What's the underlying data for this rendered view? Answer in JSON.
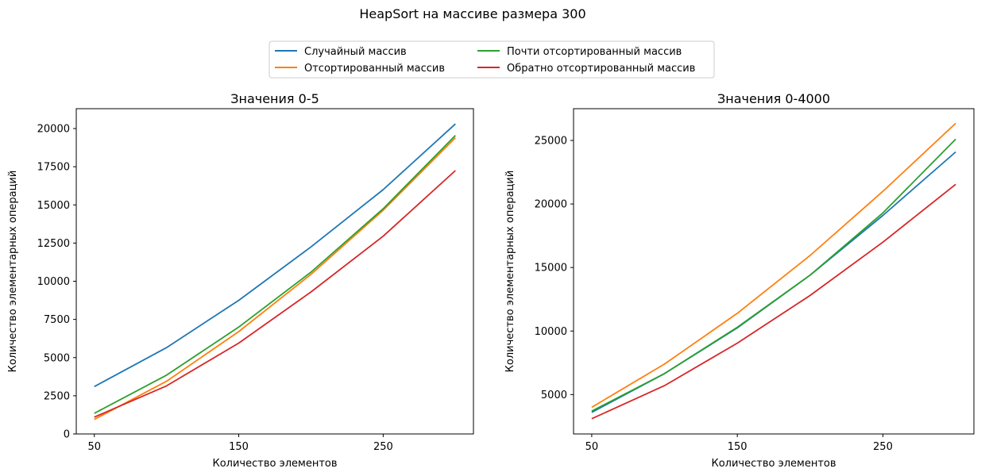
{
  "suptitle": "HeapSort на массиве размера 300",
  "legend": {
    "placement": "top-center",
    "entries": [
      {
        "label": "Случайный массив",
        "color": "#1f77b4"
      },
      {
        "label": "Отсортированный массив",
        "color": "#ff7f0e"
      },
      {
        "label": "Почти отсортированный массив",
        "color": "#2ca02c"
      },
      {
        "label": "Обратно отсортированный массив",
        "color": "#d62728"
      }
    ]
  },
  "chart_data": [
    {
      "type": "line",
      "title": "Значения 0-5",
      "xlabel": "Количество элементов",
      "ylabel": "Количество элементарных операций",
      "x": [
        50,
        100,
        150,
        200,
        250,
        300
      ],
      "xticks": [
        50,
        150,
        250
      ],
      "xlim": [
        37.5,
        312.5
      ],
      "yticks": [
        0,
        2500,
        5000,
        7500,
        10000,
        12500,
        15000,
        17500,
        20000
      ],
      "ylim": [
        0,
        21300
      ],
      "grid": false,
      "series": [
        {
          "name": "Случайный массив",
          "color": "#1f77b4",
          "values": [
            3100,
            5650,
            8750,
            12250,
            16000,
            20300
          ]
        },
        {
          "name": "Отсортированный массив",
          "color": "#ff7f0e",
          "values": [
            950,
            3450,
            6700,
            10450,
            14650,
            19400
          ]
        },
        {
          "name": "Почти отсортированный массив",
          "color": "#2ca02c",
          "values": [
            1350,
            3850,
            7000,
            10600,
            14750,
            19550
          ]
        },
        {
          "name": "Обратно отсортированный массив",
          "color": "#d62728",
          "values": [
            1100,
            3150,
            5950,
            9300,
            12950,
            17250
          ]
        }
      ]
    },
    {
      "type": "line",
      "title": "Значения 0-4000",
      "xlabel": "Количество элементов",
      "ylabel": "Количество элементарных операций",
      "x": [
        50,
        100,
        150,
        200,
        250,
        300
      ],
      "xticks": [
        50,
        150,
        250
      ],
      "xlim": [
        37.5,
        312.5
      ],
      "yticks": [
        5000,
        10000,
        15000,
        20000,
        25000
      ],
      "ylim": [
        1900,
        27500
      ],
      "grid": false,
      "series": [
        {
          "name": "Случайный массив",
          "color": "#1f77b4",
          "values": [
            3600,
            6650,
            10250,
            14400,
            19100,
            24100
          ]
        },
        {
          "name": "Отсортированный массив",
          "color": "#ff7f0e",
          "values": [
            4000,
            7400,
            11400,
            15950,
            21000,
            26350
          ]
        },
        {
          "name": "Почти отсортированный массив",
          "color": "#2ca02c",
          "values": [
            3700,
            6650,
            10300,
            14400,
            19300,
            25100
          ]
        },
        {
          "name": "Обратно отсортированный массив",
          "color": "#d62728",
          "values": [
            3100,
            5700,
            9050,
            12800,
            17000,
            21550
          ]
        }
      ]
    }
  ]
}
